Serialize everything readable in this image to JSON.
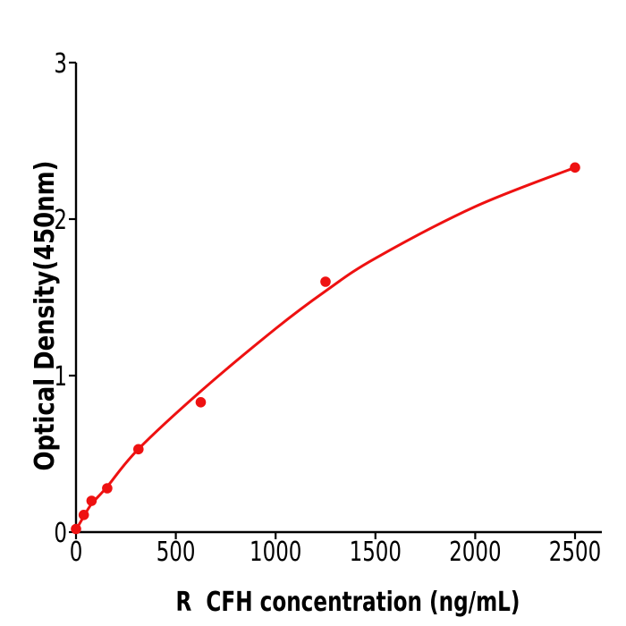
{
  "figure": {
    "background_color": "#ffffff"
  },
  "chart_data": {
    "type": "scatter",
    "title": "",
    "xlabel": "R  CFH concentration (ng/mL)",
    "ylabel": "Optical Density(450nm)",
    "x_ticks": [
      0,
      500,
      1000,
      1500,
      2000,
      2500
    ],
    "y_ticks": [
      0,
      1,
      2,
      3
    ],
    "xlim": [
      0,
      2635
    ],
    "ylim": [
      0,
      3
    ],
    "grid": false,
    "legend": null,
    "axis_color": "#000000",
    "tick_label_color": "#000000",
    "series": [
      {
        "name": "standard-points",
        "type": "scatter",
        "color": "#ee1111",
        "points": [
          {
            "x": 0,
            "y": 0.02
          },
          {
            "x": 39.06,
            "y": 0.11
          },
          {
            "x": 78.13,
            "y": 0.2
          },
          {
            "x": 156.25,
            "y": 0.28
          },
          {
            "x": 312.5,
            "y": 0.53
          },
          {
            "x": 625,
            "y": 0.83
          },
          {
            "x": 1250,
            "y": 1.6
          },
          {
            "x": 2500,
            "y": 2.33
          }
        ]
      },
      {
        "name": "fitted-curve",
        "type": "line",
        "color": "#ee1111",
        "points": [
          {
            "x": 0,
            "y": 0.015
          },
          {
            "x": 39,
            "y": 0.1
          },
          {
            "x": 78,
            "y": 0.18
          },
          {
            "x": 156,
            "y": 0.29
          },
          {
            "x": 312,
            "y": 0.53
          },
          {
            "x": 625,
            "y": 0.9
          },
          {
            "x": 1000,
            "y": 1.3
          },
          {
            "x": 1250,
            "y": 1.54
          },
          {
            "x": 1500,
            "y": 1.75
          },
          {
            "x": 2000,
            "y": 2.08
          },
          {
            "x": 2500,
            "y": 2.33
          }
        ]
      }
    ]
  }
}
